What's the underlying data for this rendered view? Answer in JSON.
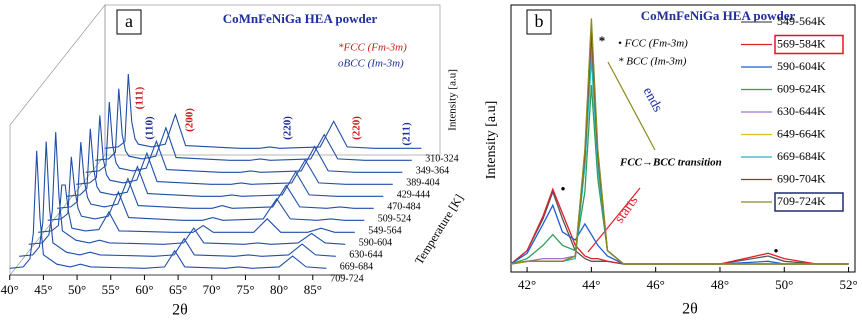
{
  "chart_data": [
    {
      "type": "waterfall",
      "title": "CoMnFeNiGa HEA powder",
      "panel": "a",
      "xlabel": "2θ",
      "ylabel": "Intensity [a.u]",
      "zlabel": "Temperature [K]",
      "legend": [
        "*FCC (Fm-3m)",
        "oBCC (Im-3m)"
      ],
      "peak_labels": [
        "(111)",
        "(110)",
        "(200)",
        "(220)",
        "(220)",
        "(211)"
      ],
      "color": "#1f4fa8",
      "xlim": [
        39,
        88
      ],
      "xticks": [
        {
          "value": 40,
          "label": "40°"
        },
        {
          "value": 45,
          "label": "45°"
        },
        {
          "value": 50,
          "label": "50°"
        },
        {
          "value": 55,
          "label": "55°"
        },
        {
          "value": 60,
          "label": "60°"
        },
        {
          "value": 65,
          "label": "65°"
        },
        {
          "value": 70,
          "label": "70°"
        },
        {
          "value": 75,
          "label": "75°"
        },
        {
          "value": 80,
          "label": "80°"
        },
        {
          "value": 85,
          "label": "85°"
        }
      ],
      "ylim": [
        0,
        100
      ],
      "x": [
        40,
        42,
        43,
        43.5,
        44,
        44.5,
        45,
        47,
        49,
        50.5,
        52,
        60,
        63,
        64.5,
        66,
        72,
        74,
        76,
        80,
        82,
        84,
        87
      ],
      "series": [
        {
          "name": "310-324",
          "values": [
            5,
            6,
            10,
            60,
            25,
            12,
            8,
            6,
            8,
            30,
            7,
            5,
            5,
            6,
            5,
            6,
            25,
            6,
            5,
            5,
            5,
            5
          ]
        },
        {
          "name": "349-364",
          "values": [
            5,
            6,
            11,
            58,
            24,
            12,
            8,
            6,
            8,
            29,
            7,
            5,
            5,
            6,
            5,
            6,
            24,
            6,
            5,
            5,
            5,
            5
          ]
        },
        {
          "name": "389-404",
          "values": [
            5,
            6,
            10,
            57,
            25,
            12,
            8,
            6,
            8,
            28,
            7,
            5,
            5,
            6,
            5,
            6,
            24,
            6,
            5,
            5,
            5,
            5
          ]
        },
        {
          "name": "429-444",
          "values": [
            5,
            6,
            10,
            56,
            24,
            12,
            8,
            6,
            8,
            28,
            7,
            5,
            5,
            6,
            5,
            6,
            23,
            6,
            5,
            5,
            5,
            5
          ]
        },
        {
          "name": "470-484",
          "values": [
            5,
            6,
            11,
            55,
            25,
            12,
            8,
            6,
            8,
            27,
            7,
            5,
            5,
            6,
            5,
            6,
            23,
            6,
            5,
            5,
            5,
            5
          ]
        },
        {
          "name": "509-524",
          "values": [
            5,
            6,
            10,
            54,
            26,
            13,
            8,
            6,
            8,
            27,
            7,
            5,
            5,
            7,
            5,
            6,
            22,
            6,
            5,
            6,
            5,
            5
          ]
        },
        {
          "name": "549-564",
          "values": [
            5,
            6,
            10,
            52,
            28,
            14,
            8,
            6,
            8,
            26,
            7,
            5,
            5,
            7,
            5,
            6,
            21,
            6,
            5,
            6,
            5,
            5
          ]
        },
        {
          "name": "590-604",
          "values": [
            5,
            6,
            10,
            40,
            40,
            20,
            8,
            6,
            7,
            20,
            6,
            5,
            5,
            10,
            5,
            5,
            15,
            5,
            5,
            8,
            5,
            5
          ]
        },
        {
          "name": "630-644",
          "values": [
            5,
            6,
            12,
            30,
            88,
            40,
            15,
            8,
            6,
            8,
            6,
            5,
            6,
            17,
            6,
            5,
            6,
            5,
            6,
            13,
            6,
            5
          ]
        },
        {
          "name": "669-684",
          "values": [
            5,
            6,
            12,
            30,
            90,
            41,
            15,
            8,
            6,
            8,
            6,
            5,
            6,
            18,
            6,
            5,
            6,
            5,
            6,
            14,
            6,
            5
          ]
        },
        {
          "name": "709-724",
          "values": [
            5,
            6,
            12,
            31,
            92,
            42,
            15,
            8,
            6,
            8,
            6,
            5,
            6,
            18,
            6,
            5,
            6,
            5,
            6,
            14,
            6,
            5
          ]
        }
      ]
    },
    {
      "type": "line",
      "title": "CoMnFeNiGa HEA powder",
      "panel": "b",
      "xlabel": "2θ",
      "ylabel": "Intensity [a.u]",
      "legend": [
        "• FCC (Fm-3m)",
        "* BCC (Im-3m)"
      ],
      "annotations": [
        "ends",
        "starts",
        "FCC→BCC transition"
      ],
      "xlim": [
        41.5,
        52.2
      ],
      "xticks": [
        {
          "value": 42,
          "label": "42°"
        },
        {
          "value": 44,
          "label": "44°"
        },
        {
          "value": 46,
          "label": "46°"
        },
        {
          "value": 48,
          "label": "48°"
        },
        {
          "value": 50,
          "label": "50°"
        },
        {
          "value": 52,
          "label": "52°"
        }
      ],
      "ylim": [
        0,
        100
      ],
      "x": [
        41.5,
        42,
        42.5,
        42.8,
        43.1,
        43.5,
        43.8,
        44,
        44.2,
        44.5,
        45,
        46,
        48,
        49.5,
        50,
        51,
        52
      ],
      "series": [
        {
          "name": "549-564K",
          "color": "#555555",
          "values": [
            3,
            8,
            20,
            30,
            20,
            8,
            5,
            4,
            4,
            4,
            3,
            3,
            3,
            6,
            4,
            3,
            3
          ]
        },
        {
          "name": "569-584K",
          "color": "#e0202a",
          "box": "#e8141c",
          "values": [
            3,
            8,
            21,
            31,
            22,
            10,
            6,
            5,
            5,
            4,
            3,
            3,
            3,
            7,
            5,
            3,
            3
          ]
        },
        {
          "name": "590-604K",
          "color": "#1f5fd0",
          "values": [
            3,
            7,
            18,
            25,
            15,
            12,
            18,
            14,
            10,
            6,
            3,
            3,
            3,
            4,
            3,
            3,
            3
          ]
        },
        {
          "name": "609-624K",
          "color": "#2ca05a",
          "values": [
            3,
            5,
            10,
            14,
            10,
            8,
            30,
            70,
            35,
            8,
            3,
            3,
            3,
            3,
            3,
            3,
            3
          ]
        },
        {
          "name": "630-644K",
          "color": "#a070d0",
          "values": [
            3,
            4,
            5,
            5,
            5,
            6,
            40,
            85,
            40,
            8,
            3,
            3,
            3,
            3,
            3,
            3,
            3
          ]
        },
        {
          "name": "649-664K",
          "color": "#d8c020",
          "values": [
            3,
            4,
            4,
            4,
            4,
            6,
            45,
            92,
            45,
            8,
            3,
            3,
            3,
            3,
            3,
            3,
            3
          ]
        },
        {
          "name": "669-684K",
          "color": "#20b8c0",
          "values": [
            3,
            4,
            4,
            4,
            4,
            5,
            40,
            80,
            40,
            8,
            3,
            3,
            3,
            3,
            3,
            3,
            3
          ]
        },
        {
          "name": "690-704K",
          "color": "#8a3a2a",
          "values": [
            3,
            4,
            4,
            4,
            4,
            6,
            44,
            90,
            44,
            8,
            3,
            3,
            3,
            3,
            3,
            3,
            3
          ]
        },
        {
          "name": "709-724K",
          "color": "#8c8a20",
          "box": "#1f2d6e",
          "values": [
            3,
            4,
            4,
            4,
            4,
            6,
            46,
            95,
            46,
            8,
            3,
            3,
            3,
            3,
            3,
            3,
            3
          ]
        }
      ]
    }
  ]
}
